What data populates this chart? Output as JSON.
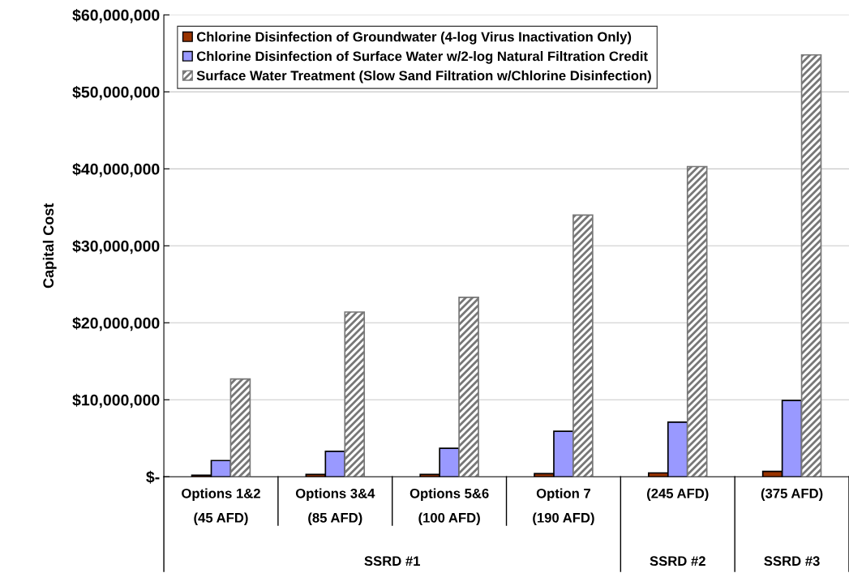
{
  "chart_data": {
    "type": "bar",
    "ylabel": "Capital Cost",
    "categories": [
      "Options 1&2\n(45 AFD)",
      "Options 3&4\n(85 AFD)",
      "Options 5&6\n(100 AFD)",
      "Option 7\n(190 AFD)",
      "(245 AFD)",
      "(375 AFD)"
    ],
    "series": [
      {
        "name": "Chlorine Disinfection of Groundwater (4-log Virus Inactivation Only)",
        "color": "#993300",
        "values": [
          200000,
          300000,
          300000,
          400000,
          500000,
          700000
        ]
      },
      {
        "name": "Chlorine Disinfection of Surface Water w/2-log Natural Filtration Credit",
        "color": "#9999ff",
        "values": [
          2100000,
          3300000,
          3700000,
          5900000,
          7100000,
          9900000
        ]
      },
      {
        "name": "Surface Water Treatment (Slow Sand Filtration w/Chlorine Disinfection)",
        "color": "#777777",
        "values": [
          12700000,
          21400000,
          23300000,
          34000000,
          40300000,
          54800000
        ]
      }
    ],
    "ylim": [
      0,
      60000000
    ],
    "yticks": [
      {
        "value": 0,
        "label": "$-"
      },
      {
        "value": 10000000,
        "label": "$10,000,000"
      },
      {
        "value": 20000000,
        "label": "$20,000,000"
      },
      {
        "value": 30000000,
        "label": "$30,000,000"
      },
      {
        "value": 40000000,
        "label": "$40,000,000"
      },
      {
        "value": 50000000,
        "label": "$50,000,000"
      },
      {
        "value": 60000000,
        "label": "$60,000,000"
      }
    ],
    "annotations": [
      "SSRD #1",
      "SSRD #2",
      "SSRD #3"
    ],
    "grid": "y",
    "legend": "top left"
  }
}
